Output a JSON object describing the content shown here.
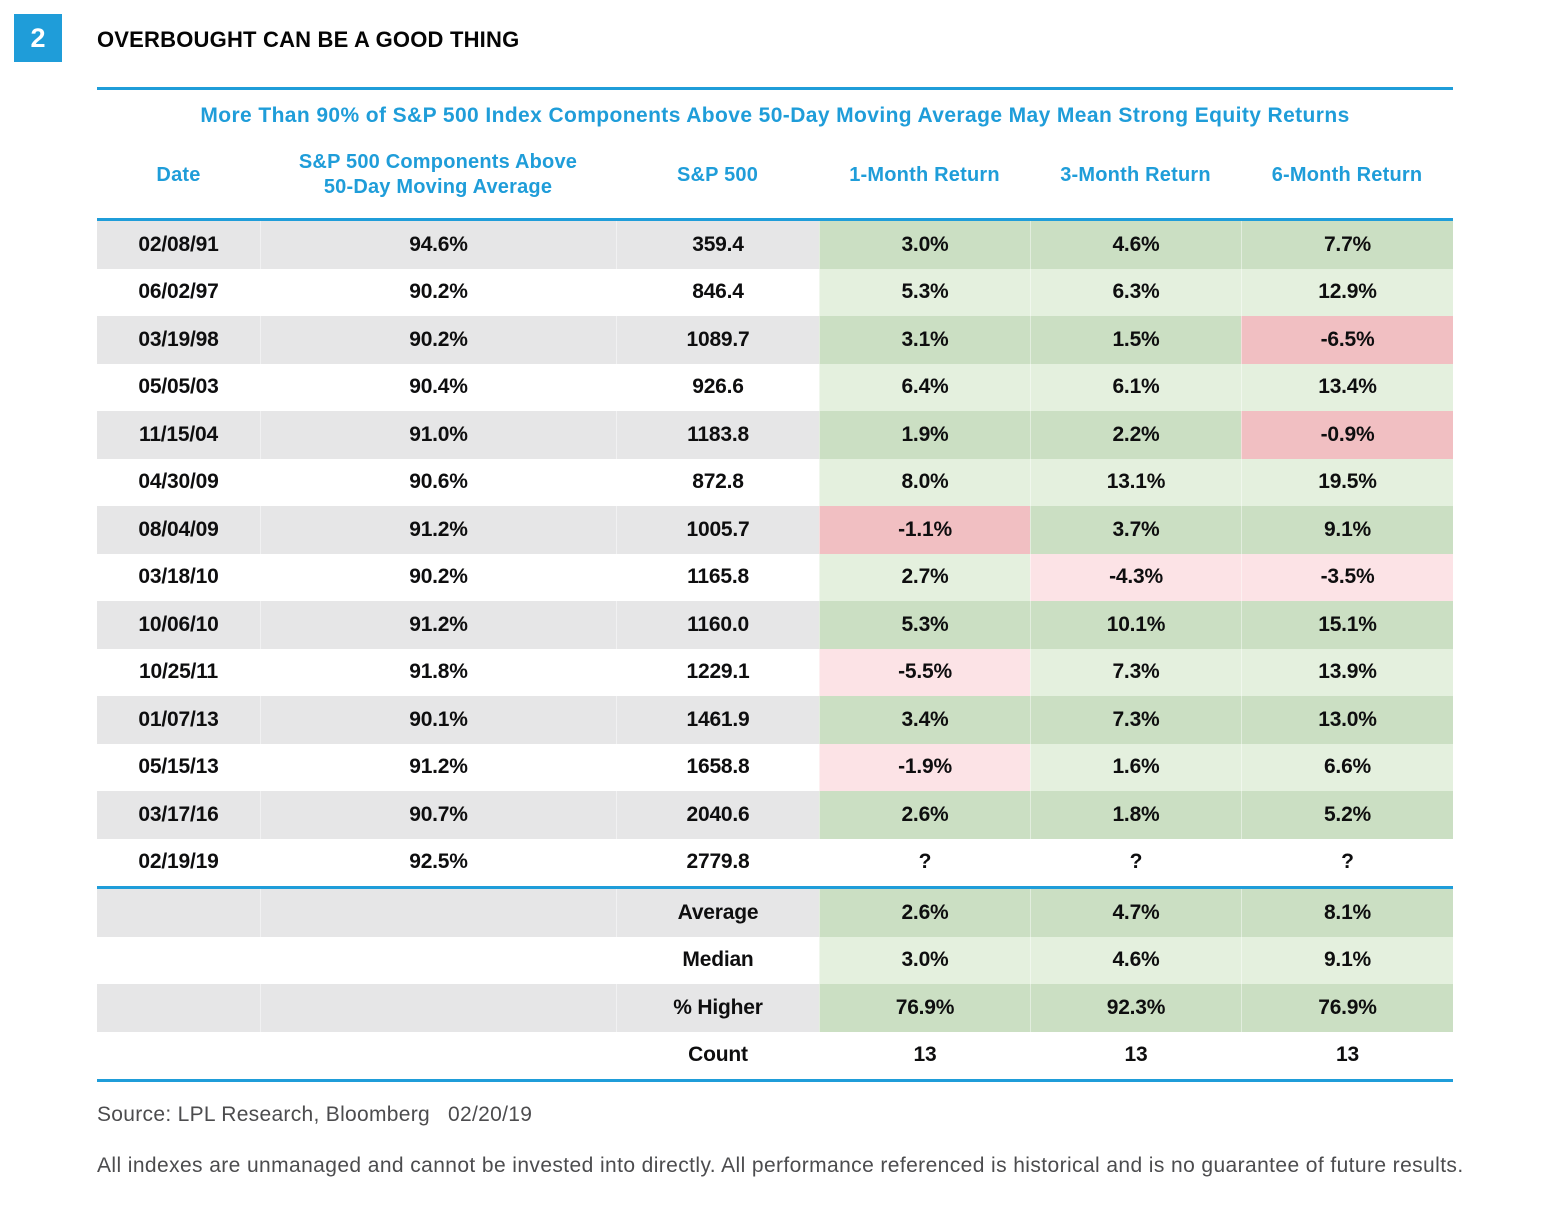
{
  "badge": "2",
  "title": "OVERBOUGHT CAN BE A GOOD THING",
  "subtitle": "More Than 90% of S&P 500 Index Components Above 50-Day Moving Average May Mean Strong Equity Returns",
  "colors": {
    "accent_blue": "#1f9dd9",
    "row_gray": "#e6e6e7",
    "green_dark": "#cbdfc3",
    "green_light": "#e4f0de",
    "red_dark": "#f1bfc2",
    "red_light": "#fce3e6",
    "text_ink": "#0e0e0f",
    "footer_gray": "#4c4c4e"
  },
  "header": {
    "date": "Date",
    "components_line1": "S&P 500 Components Above",
    "components_line2": "50-Day Moving Average",
    "sp500": "S&P 500",
    "m1": "1-Month Return",
    "m3": "3-Month Return",
    "m6": "6-Month Return"
  },
  "chart_data": {
    "type": "table",
    "figure_number": "2",
    "title": "OVERBOUGHT CAN BE A GOOD THING",
    "subtitle": "More Than 90% of S&P 500 Index Components Above 50-Day Moving Average May Mean Strong Equity Returns",
    "columns": [
      "Date",
      "S&P 500 Components Above 50-Day Moving Average",
      "S&P 500",
      "1-Month Return",
      "3-Month Return",
      "6-Month Return"
    ],
    "rows": [
      {
        "stripe": "gray",
        "date": "02/08/91",
        "components_above": "94.6%",
        "sp500": "359.4",
        "returns": [
          {
            "text": "3.0%",
            "tone": "green-dark"
          },
          {
            "text": "4.6%",
            "tone": "green-dark"
          },
          {
            "text": "7.7%",
            "tone": "green-dark"
          }
        ]
      },
      {
        "stripe": "white",
        "date": "06/02/97",
        "components_above": "90.2%",
        "sp500": "846.4",
        "returns": [
          {
            "text": "5.3%",
            "tone": "green-light"
          },
          {
            "text": "6.3%",
            "tone": "green-light"
          },
          {
            "text": "12.9%",
            "tone": "green-light"
          }
        ]
      },
      {
        "stripe": "gray",
        "date": "03/19/98",
        "components_above": "90.2%",
        "sp500": "1089.7",
        "returns": [
          {
            "text": "3.1%",
            "tone": "green-dark"
          },
          {
            "text": "1.5%",
            "tone": "green-dark"
          },
          {
            "text": "-6.5%",
            "tone": "red-dark"
          }
        ]
      },
      {
        "stripe": "white",
        "date": "05/05/03",
        "components_above": "90.4%",
        "sp500": "926.6",
        "returns": [
          {
            "text": "6.4%",
            "tone": "green-light"
          },
          {
            "text": "6.1%",
            "tone": "green-light"
          },
          {
            "text": "13.4%",
            "tone": "green-light"
          }
        ]
      },
      {
        "stripe": "gray",
        "date": "11/15/04",
        "components_above": "91.0%",
        "sp500": "1183.8",
        "returns": [
          {
            "text": "1.9%",
            "tone": "green-dark"
          },
          {
            "text": "2.2%",
            "tone": "green-dark"
          },
          {
            "text": "-0.9%",
            "tone": "red-dark"
          }
        ]
      },
      {
        "stripe": "white",
        "date": "04/30/09",
        "components_above": "90.6%",
        "sp500": "872.8",
        "returns": [
          {
            "text": "8.0%",
            "tone": "green-light"
          },
          {
            "text": "13.1%",
            "tone": "green-light"
          },
          {
            "text": "19.5%",
            "tone": "green-light"
          }
        ]
      },
      {
        "stripe": "gray",
        "date": "08/04/09",
        "components_above": "91.2%",
        "sp500": "1005.7",
        "returns": [
          {
            "text": "-1.1%",
            "tone": "red-dark"
          },
          {
            "text": "3.7%",
            "tone": "green-dark"
          },
          {
            "text": "9.1%",
            "tone": "green-dark"
          }
        ]
      },
      {
        "stripe": "white",
        "date": "03/18/10",
        "components_above": "90.2%",
        "sp500": "1165.8",
        "returns": [
          {
            "text": "2.7%",
            "tone": "green-light"
          },
          {
            "text": "-4.3%",
            "tone": "red-light"
          },
          {
            "text": "-3.5%",
            "tone": "red-light"
          }
        ]
      },
      {
        "stripe": "gray",
        "date": "10/06/10",
        "components_above": "91.2%",
        "sp500": "1160.0",
        "returns": [
          {
            "text": "5.3%",
            "tone": "green-dark"
          },
          {
            "text": "10.1%",
            "tone": "green-dark"
          },
          {
            "text": "15.1%",
            "tone": "green-dark"
          }
        ]
      },
      {
        "stripe": "white",
        "date": "10/25/11",
        "components_above": "91.8%",
        "sp500": "1229.1",
        "returns": [
          {
            "text": "-5.5%",
            "tone": "red-light"
          },
          {
            "text": "7.3%",
            "tone": "green-light"
          },
          {
            "text": "13.9%",
            "tone": "green-light"
          }
        ]
      },
      {
        "stripe": "gray",
        "date": "01/07/13",
        "components_above": "90.1%",
        "sp500": "1461.9",
        "returns": [
          {
            "text": "3.4%",
            "tone": "green-dark"
          },
          {
            "text": "7.3%",
            "tone": "green-dark"
          },
          {
            "text": "13.0%",
            "tone": "green-dark"
          }
        ]
      },
      {
        "stripe": "white",
        "date": "05/15/13",
        "components_above": "91.2%",
        "sp500": "1658.8",
        "returns": [
          {
            "text": "-1.9%",
            "tone": "red-light"
          },
          {
            "text": "1.6%",
            "tone": "green-light"
          },
          {
            "text": "6.6%",
            "tone": "green-light"
          }
        ]
      },
      {
        "stripe": "gray",
        "date": "03/17/16",
        "components_above": "90.7%",
        "sp500": "2040.6",
        "returns": [
          {
            "text": "2.6%",
            "tone": "green-dark"
          },
          {
            "text": "1.8%",
            "tone": "green-dark"
          },
          {
            "text": "5.2%",
            "tone": "green-dark"
          }
        ]
      },
      {
        "stripe": "white",
        "date": "02/19/19",
        "components_above": "92.5%",
        "sp500": "2779.8",
        "returns": [
          {
            "text": "?",
            "tone": "none"
          },
          {
            "text": "?",
            "tone": "none"
          },
          {
            "text": "?",
            "tone": "none"
          }
        ]
      }
    ],
    "summary_rows": [
      {
        "stripe": "gray",
        "label": "Average",
        "returns": [
          {
            "text": "2.6%",
            "tone": "green-dark"
          },
          {
            "text": "4.7%",
            "tone": "green-dark"
          },
          {
            "text": "8.1%",
            "tone": "green-dark"
          }
        ]
      },
      {
        "stripe": "white",
        "label": "Median",
        "returns": [
          {
            "text": "3.0%",
            "tone": "green-light"
          },
          {
            "text": "4.6%",
            "tone": "green-light"
          },
          {
            "text": "9.1%",
            "tone": "green-light"
          }
        ]
      },
      {
        "stripe": "gray",
        "label": "% Higher",
        "returns": [
          {
            "text": "76.9%",
            "tone": "green-dark"
          },
          {
            "text": "92.3%",
            "tone": "green-dark"
          },
          {
            "text": "76.9%",
            "tone": "green-dark"
          }
        ]
      },
      {
        "stripe": "white",
        "label": "Count",
        "returns": [
          {
            "text": "13",
            "tone": "none"
          },
          {
            "text": "13",
            "tone": "none"
          },
          {
            "text": "13",
            "tone": "none"
          }
        ]
      }
    ]
  },
  "footer": {
    "source": "Source: LPL Research, Bloomberg",
    "source_date": "02/20/19",
    "disclaimer": "All indexes are unmanaged and cannot be invested into directly. All performance referenced is historical and is no guarantee of future results."
  }
}
